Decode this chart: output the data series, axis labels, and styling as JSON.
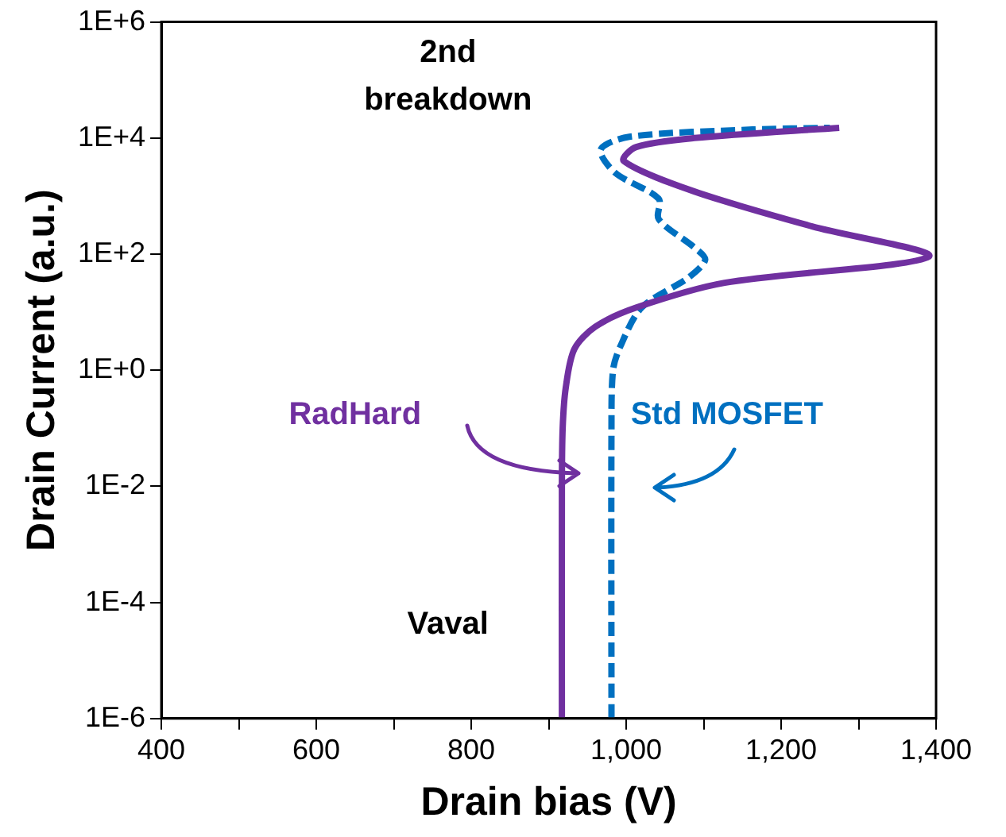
{
  "chart_data": {
    "type": "line",
    "xlabel": "Drain bias (V)",
    "ylabel": "Drain Current (a.u.)",
    "log": "y",
    "grid": false,
    "legend": false,
    "marker": "none",
    "xlim": [
      400,
      1400
    ],
    "xticks": [
      400,
      {
        "value": 500,
        "label": null
      },
      600,
      {
        "value": 700,
        "label": null
      },
      800,
      {
        "value": 900,
        "label": null
      },
      {
        "value": 1000,
        "label": "1,000"
      },
      {
        "value": 1100,
        "label": null
      },
      {
        "value": 1200,
        "label": "1,200"
      },
      {
        "value": 1300,
        "label": null
      },
      {
        "value": 1400,
        "label": "1,400"
      }
    ],
    "ylim": [
      1e-06,
      1000000
    ],
    "yticks": [
      {
        "value": 1e-06,
        "label": "1E-6"
      },
      {
        "value": 0.0001,
        "label": "1E-4"
      },
      {
        "value": 0.01,
        "label": "1E-2"
      },
      {
        "value": 1,
        "label": "1E+0"
      },
      {
        "value": 100,
        "label": "1E+2"
      },
      {
        "value": 10000,
        "label": "1E+4"
      },
      {
        "value": 1000000,
        "label": "1E+6"
      }
    ],
    "annotations": [
      "2nd breakdown",
      "Vaval"
    ],
    "series": [
      {
        "name": "RadHard",
        "color": "#7030a0",
        "line_style": "solid",
        "x": [
          917,
          917,
          918,
          922,
          933,
          960,
          1013,
          1127,
          1391,
          1240,
          1088,
          997,
          1013,
          1088,
          1275
        ],
        "values": [
          1e-06,
          0.01,
          0.1,
          0.5,
          2.3,
          5.6,
          12,
          32,
          91,
          300,
          1200,
          4000,
          7000,
          10000,
          15000
        ]
      },
      {
        "name": "Std MOSFET",
        "color": "#0070c0",
        "line_style": "dashed",
        "x": [
          981,
          981,
          983,
          992,
          1020,
          1081,
          1102,
          1088,
          1042,
          1042,
          986,
          967,
          1004,
          1163,
          1263
        ],
        "values": [
          1e-06,
          0.1,
          1,
          2.5,
          12,
          40,
          80,
          130,
          400,
          900,
          2500,
          6300,
          10500,
          14000,
          15000
        ]
      }
    ]
  }
}
